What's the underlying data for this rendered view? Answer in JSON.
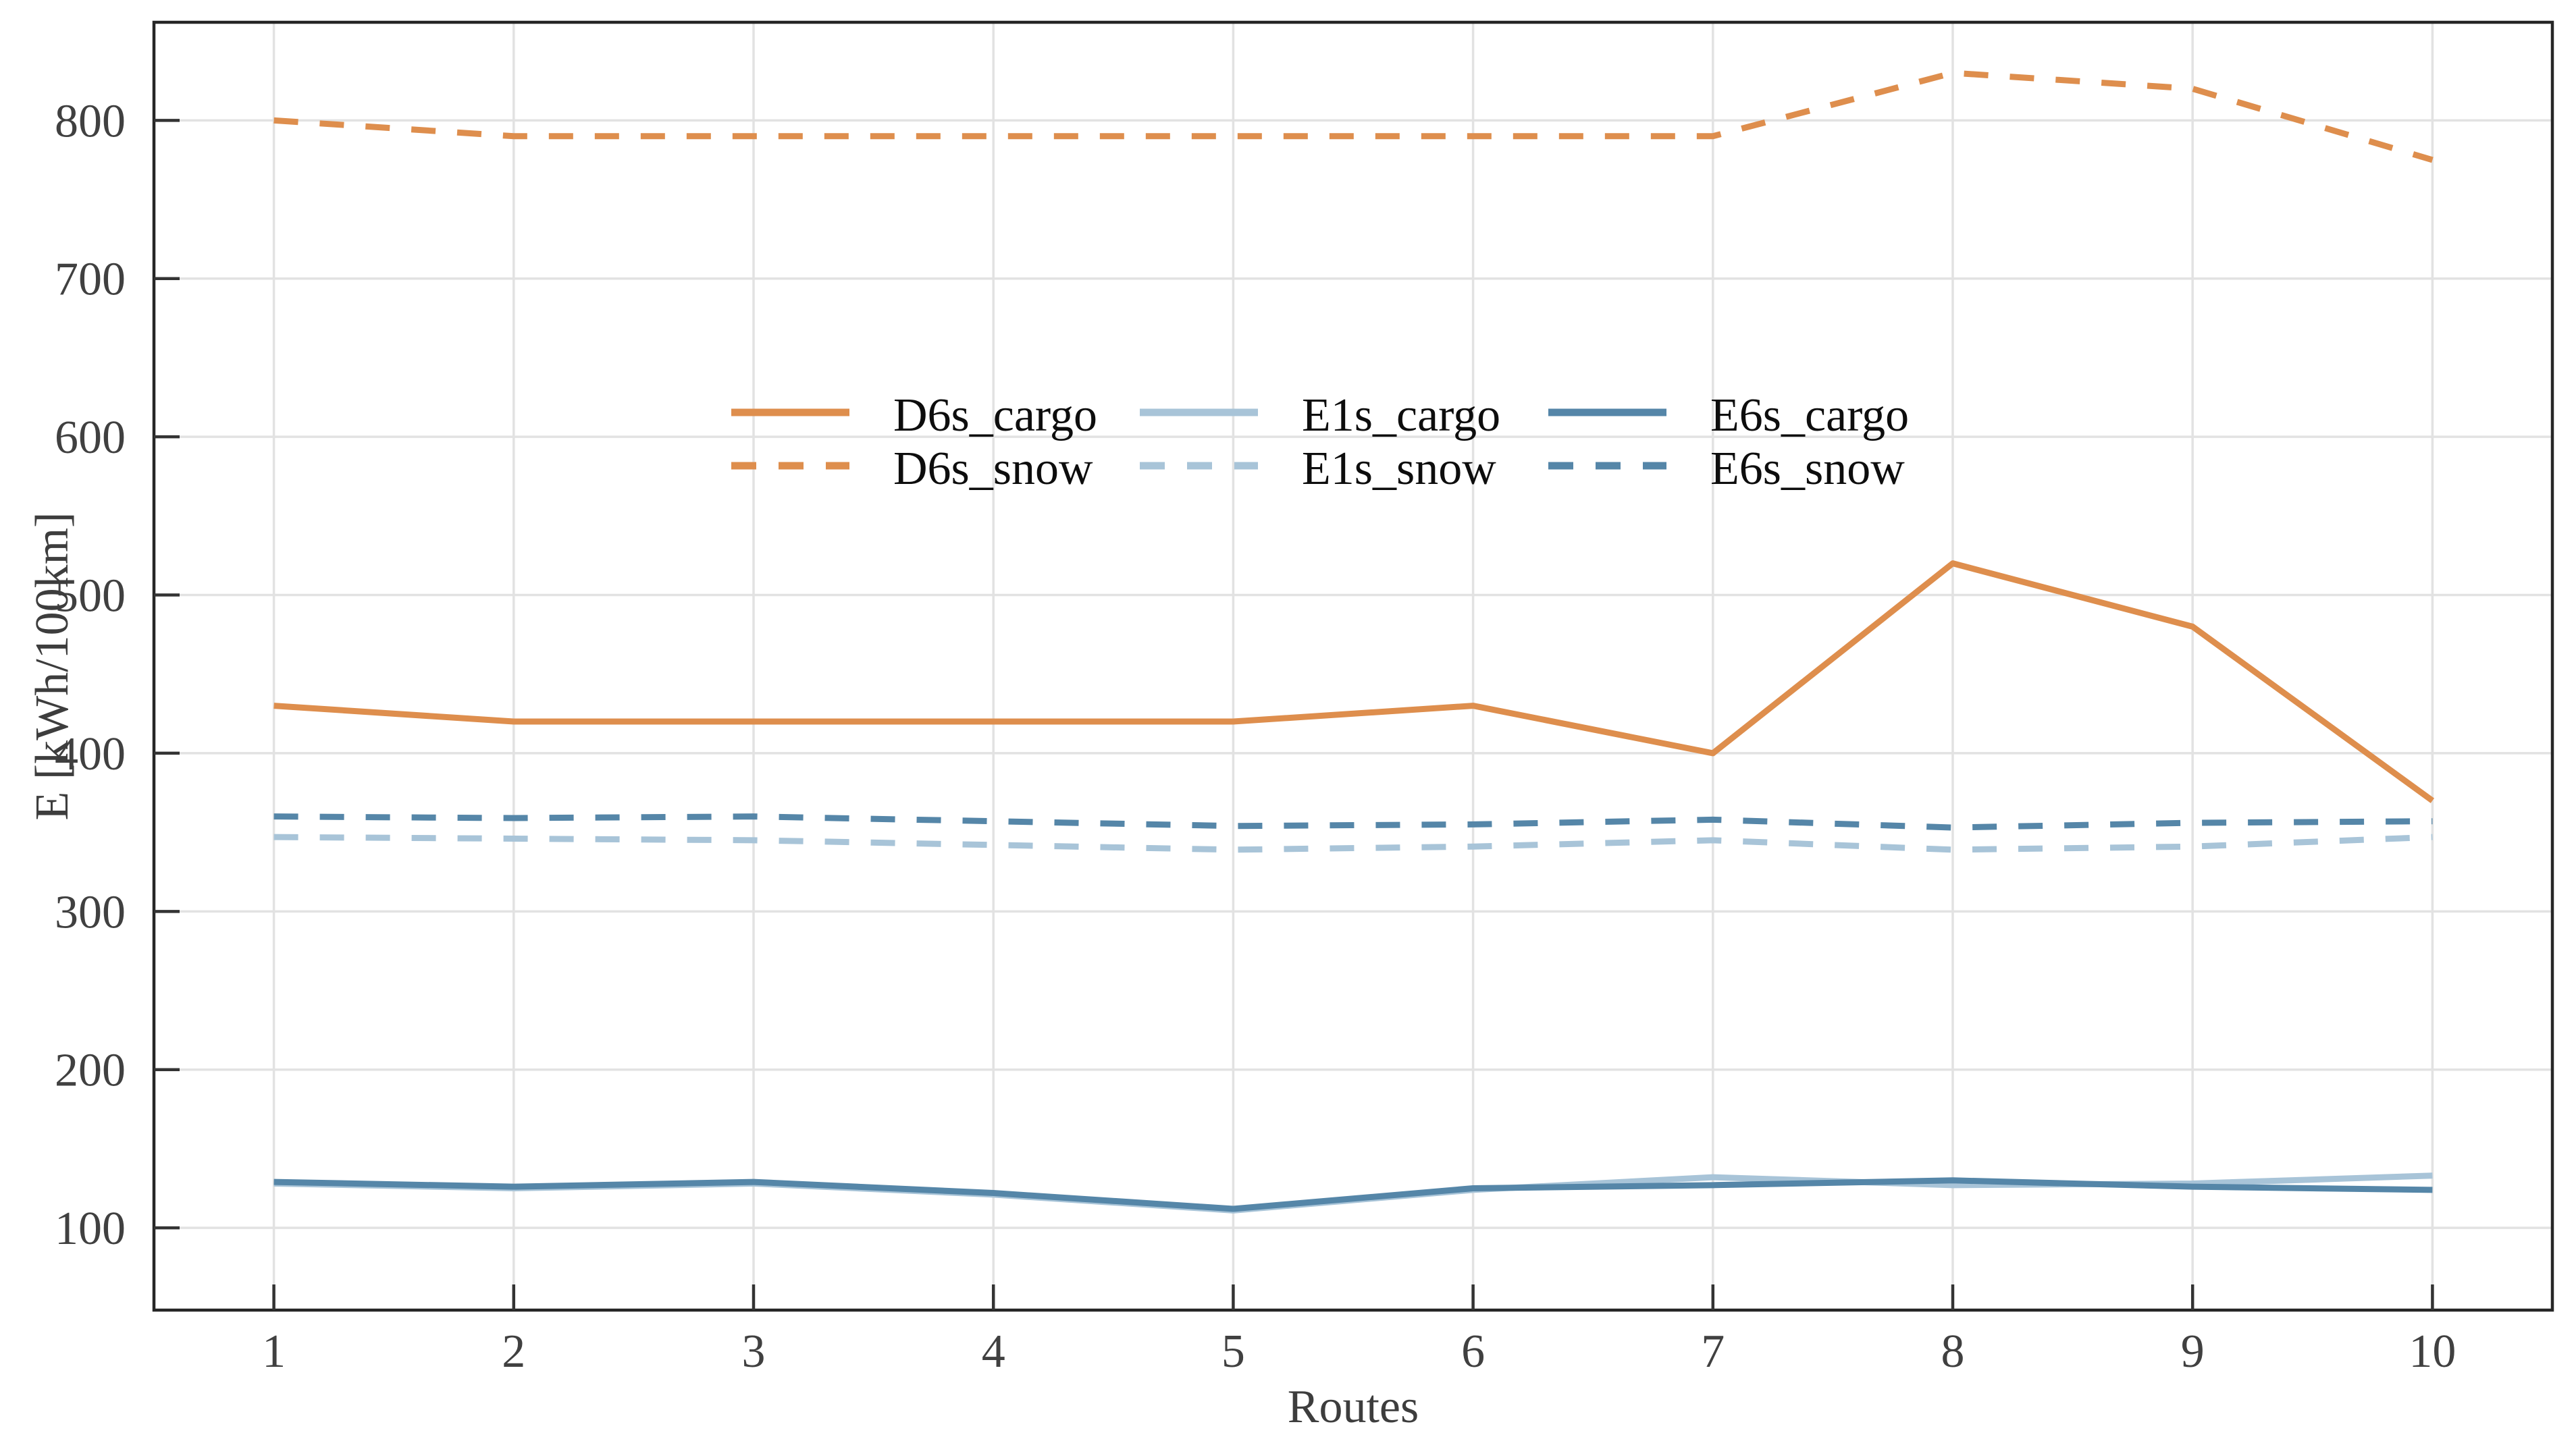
{
  "chart_data": {
    "type": "line",
    "title": "",
    "xlabel": "Routes",
    "ylabel": "E [kWh/100km]",
    "x": [
      1,
      2,
      3,
      4,
      5,
      6,
      7,
      8,
      9,
      10
    ],
    "xticks": [
      1,
      2,
      3,
      4,
      5,
      6,
      7,
      8,
      9,
      10
    ],
    "yticks": [
      100,
      200,
      300,
      400,
      500,
      600,
      700,
      800
    ],
    "xlim": [
      0.5,
      10.5
    ],
    "ylim": [
      48,
      862
    ],
    "grid": true,
    "legend": {
      "position": "inside-upper-center-left",
      "columns": 3,
      "fill_order": "column-major"
    },
    "series": [
      {
        "name": "D6s_cargo",
        "color": "#DE8E4D",
        "line_style": "solid",
        "values": [
          430,
          420,
          420,
          420,
          420,
          430,
          400,
          520,
          480,
          370
        ]
      },
      {
        "name": "D6s_snow",
        "color": "#DE8E4D",
        "line_style": "dashed",
        "values": [
          800,
          790,
          790,
          790,
          790,
          790,
          790,
          830,
          820,
          775
        ]
      },
      {
        "name": "E1s_cargo",
        "color": "#A8C4D8",
        "line_style": "solid",
        "values": [
          128,
          125,
          128,
          121,
          111,
          124,
          132,
          127,
          128,
          133
        ]
      },
      {
        "name": "E1s_snow",
        "color": "#A8C4D8",
        "line_style": "dashed",
        "values": [
          347,
          346,
          345,
          342,
          339,
          341,
          345,
          339,
          341,
          347
        ]
      },
      {
        "name": "E6s_cargo",
        "color": "#5586A8",
        "line_style": "solid",
        "values": [
          129,
          126,
          129,
          122,
          112,
          125,
          127,
          130,
          126,
          124
        ]
      },
      {
        "name": "E6s_snow",
        "color": "#5586A8",
        "line_style": "dashed",
        "values": [
          360,
          359,
          360,
          357,
          354,
          355,
          358,
          353,
          356,
          357
        ]
      }
    ],
    "styles": {
      "background": "#FFFFFF",
      "grid_color": "#E2E2E2",
      "frame_color": "#262626",
      "tick_color": "#333333",
      "tick_label_color": "#404040",
      "axis_label_color": "#3D3D3D",
      "legend_text_color": "#0D0D0D"
    }
  }
}
